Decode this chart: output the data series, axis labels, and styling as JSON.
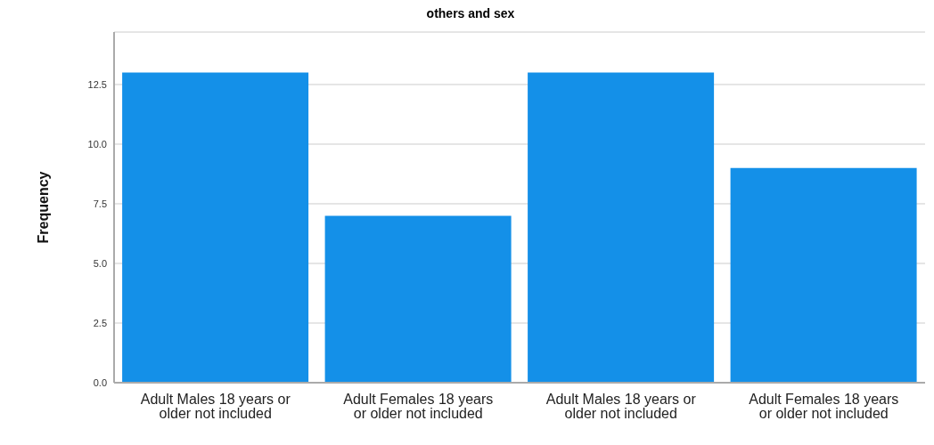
{
  "chart_data": {
    "type": "bar",
    "title": "others and sex",
    "ylabel": "Frequency",
    "categories": [
      "Adult Males 18 years or older not included",
      "Adult Females 18 years or older not included",
      "Adult Males 18 years or older not included",
      "Adult Females 18 years or older not included"
    ],
    "values": [
      13,
      7,
      13,
      9
    ],
    "color": "#1490e8",
    "ylim": [
      0,
      14.7
    ],
    "yticks": [
      {
        "value": 0,
        "label": "0.0"
      },
      {
        "value": 2.5,
        "label": "2.5"
      },
      {
        "value": 5,
        "label": "5.0"
      },
      {
        "value": 7.5,
        "label": "7.5"
      },
      {
        "value": 10,
        "label": "10.0"
      },
      {
        "value": 12.5,
        "label": "12.5"
      }
    ],
    "grid": "y"
  }
}
